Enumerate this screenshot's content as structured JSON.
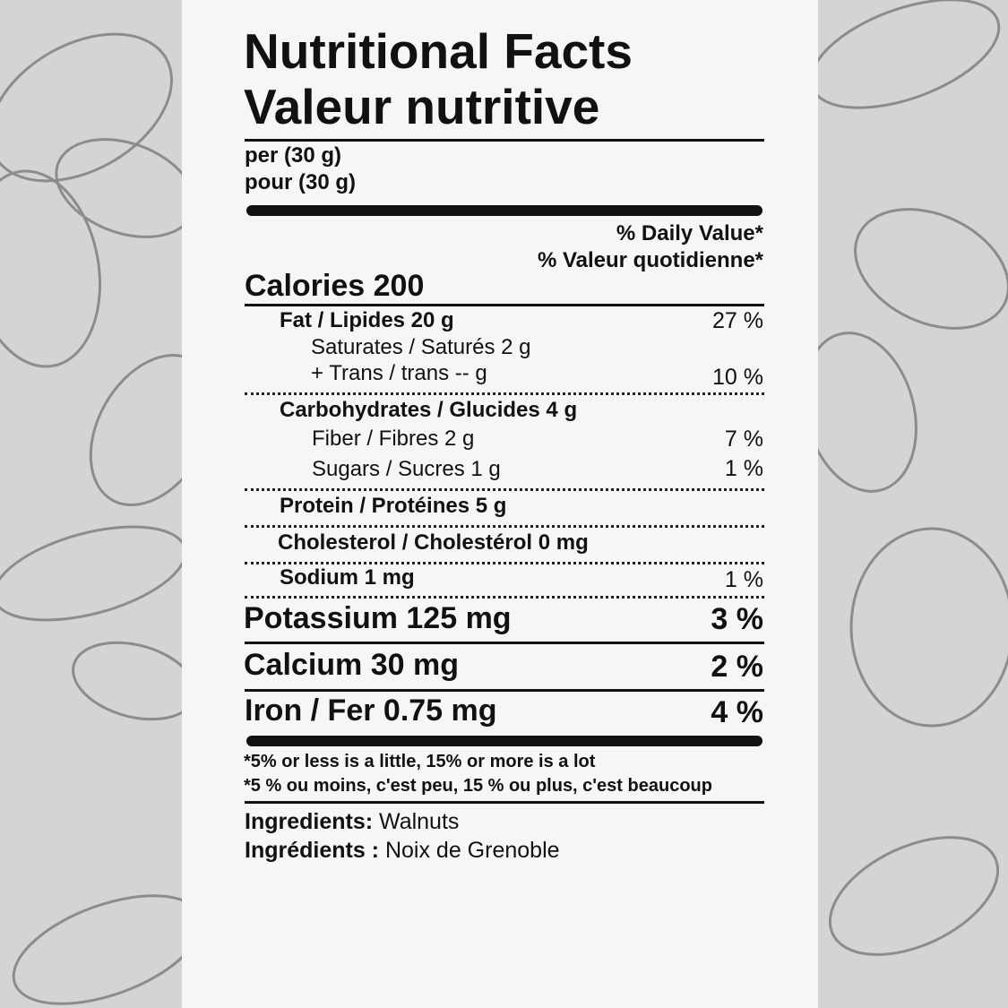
{
  "title_en": "Nutritional Facts",
  "title_fr": "Valeur nutritive",
  "serving_en": "per (30 g)",
  "serving_fr": "pour (30 g)",
  "dv_en": "% Daily Value*",
  "dv_fr": "% Valeur quotidienne*",
  "calories": "Calories 200",
  "rows": {
    "fat": {
      "label": "Fat / Lipides 20 g",
      "dv": "27 %"
    },
    "saturates": {
      "label": "Saturates / Saturés 2 g"
    },
    "trans": {
      "label": "+ Trans / trans -- g",
      "dv": "10 %"
    },
    "carbs": {
      "label": "Carbohydrates / Glucides 4 g"
    },
    "fiber": {
      "label": "Fiber / Fibres 2 g",
      "dv": "7 %"
    },
    "sugars": {
      "label": "Sugars / Sucres 1 g",
      "dv": "1 %"
    },
    "protein": {
      "label": "Protein / Protéines 5 g"
    },
    "cholesterol": {
      "label": "Cholesterol / Cholestérol 0 mg"
    },
    "sodium": {
      "label": "Sodium 1 mg",
      "dv": "1 %"
    },
    "potassium": {
      "label": "Potassium 125 mg",
      "dv": "3 %"
    },
    "calcium": {
      "label": "Calcium 30 mg",
      "dv": "2 %"
    },
    "iron": {
      "label": "Iron / Fer 0.75 mg",
      "dv": "4 %"
    }
  },
  "footnote_en": "*5% or less is a little, 15% or more is a lot",
  "footnote_fr": "*5 % ou moins, c'est peu, 15 % ou plus, c'est beaucoup",
  "ingredients": {
    "label_en": "Ingredients:",
    "value_en": "Walnuts",
    "label_fr": "Ingrédients :",
    "value_fr": "Noix de Grenoble"
  },
  "colors": {
    "background": "#d4d4d6",
    "panel": "#f6f6f6",
    "ink": "#111111",
    "nut_outline": "#8c8c8e"
  }
}
